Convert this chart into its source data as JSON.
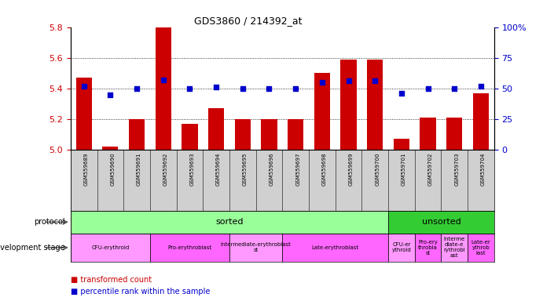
{
  "title": "GDS3860 / 214392_at",
  "samples": [
    "GSM559689",
    "GSM559690",
    "GSM559691",
    "GSM559692",
    "GSM559693",
    "GSM559694",
    "GSM559695",
    "GSM559696",
    "GSM559697",
    "GSM559698",
    "GSM559699",
    "GSM559700",
    "GSM559701",
    "GSM559702",
    "GSM559703",
    "GSM559704"
  ],
  "bar_values": [
    5.47,
    5.02,
    5.2,
    5.8,
    5.17,
    5.27,
    5.2,
    5.2,
    5.2,
    5.5,
    5.59,
    5.59,
    5.07,
    5.21,
    5.21,
    5.37
  ],
  "dot_values": [
    52,
    45,
    50,
    57,
    50,
    51,
    50,
    50,
    50,
    55,
    56,
    56,
    46,
    50,
    50,
    52
  ],
  "ylim_left": [
    5.0,
    5.8
  ],
  "ylim_right": [
    0,
    100
  ],
  "yticks_left": [
    5.0,
    5.2,
    5.4,
    5.6,
    5.8
  ],
  "yticks_right": [
    0,
    25,
    50,
    75,
    100
  ],
  "bar_color": "#cc0000",
  "dot_color": "#0000cc",
  "protocol_sorted_span": [
    0,
    12
  ],
  "protocol_unsorted_span": [
    12,
    16
  ],
  "protocol_color_sorted": "#99ff99",
  "protocol_color_unsorted": "#33cc33",
  "dev_stage_groups": [
    {
      "label": "CFU-erythroid",
      "span": [
        0,
        3
      ],
      "color": "#ff99ff"
    },
    {
      "label": "Pro-erythroblast",
      "span": [
        3,
        6
      ],
      "color": "#ff66ff"
    },
    {
      "label": "Intermediate-erythroblast\nst",
      "span": [
        6,
        8
      ],
      "color": "#ff99ff"
    },
    {
      "label": "Late-erythroblast",
      "span": [
        8,
        12
      ],
      "color": "#ff66ff"
    },
    {
      "label": "CFU-er\nythroid",
      "span": [
        12,
        13
      ],
      "color": "#ff99ff"
    },
    {
      "label": "Pro-ery\nthrobla\nst",
      "span": [
        13,
        14
      ],
      "color": "#ff66ff"
    },
    {
      "label": "Interme\ndiate-e\nrythrobl\nast",
      "span": [
        14,
        15
      ],
      "color": "#ff99ff"
    },
    {
      "label": "Late-er\nythrob\nlast",
      "span": [
        15,
        16
      ],
      "color": "#ff66ff"
    }
  ],
  "legend_items": [
    {
      "label": "transformed count",
      "color": "#cc0000"
    },
    {
      "label": "percentile rank within the sample",
      "color": "#0000cc"
    }
  ],
  "background_color": "#ffffff",
  "label_color_left": "#cc0000",
  "label_color_right": "#0000cc",
  "tick_label_color": "#cc0000",
  "xticklabel_bg": "#d0d0d0"
}
